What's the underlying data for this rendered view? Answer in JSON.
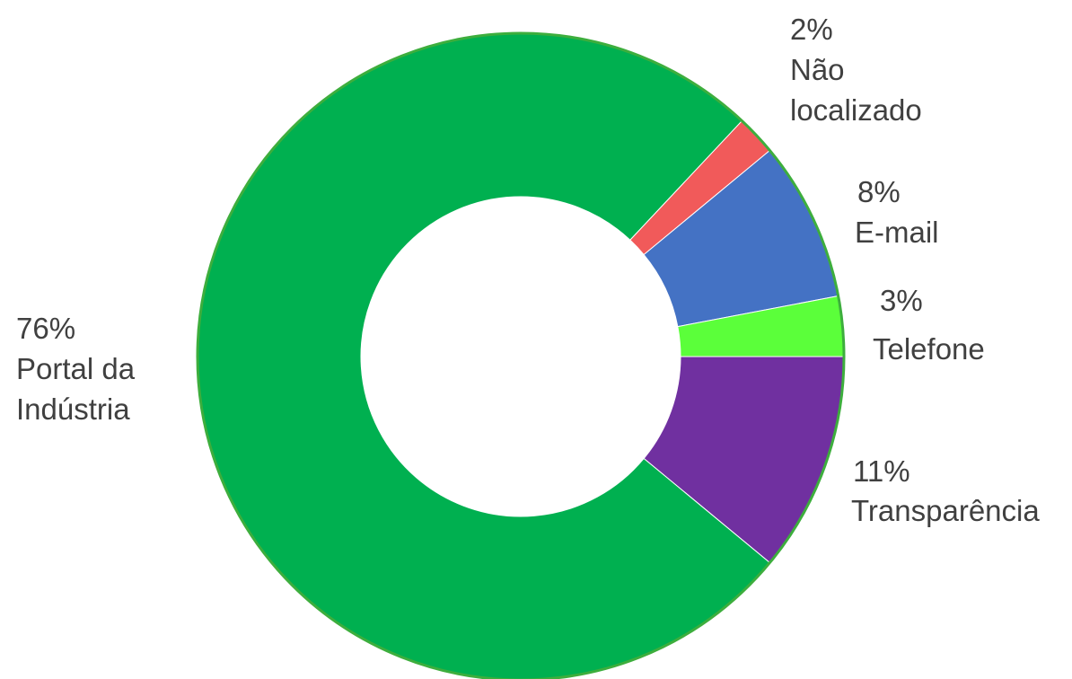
{
  "chart_data": {
    "type": "pie",
    "style": "donut",
    "start": "3 o'clock, clockwise",
    "segments": [
      {
        "label": "Transparência",
        "percent_label": "11%",
        "value": 11,
        "color": "#7030A0"
      },
      {
        "label": "Portal da Indústria",
        "percent_label": "76%",
        "value": 76,
        "color": "#00B050"
      },
      {
        "label": "Não localizado",
        "percent_label": "2%",
        "value": 2,
        "color": "#F15A5A"
      },
      {
        "label": "E-mail",
        "percent_label": "8%",
        "value": 8,
        "color": "#4472C4"
      },
      {
        "label": "Telefone",
        "percent_label": "3%",
        "value": 3,
        "color": "#5BFF3A"
      }
    ],
    "legend": "none",
    "slice_outline_color": "#3DAE3D"
  }
}
